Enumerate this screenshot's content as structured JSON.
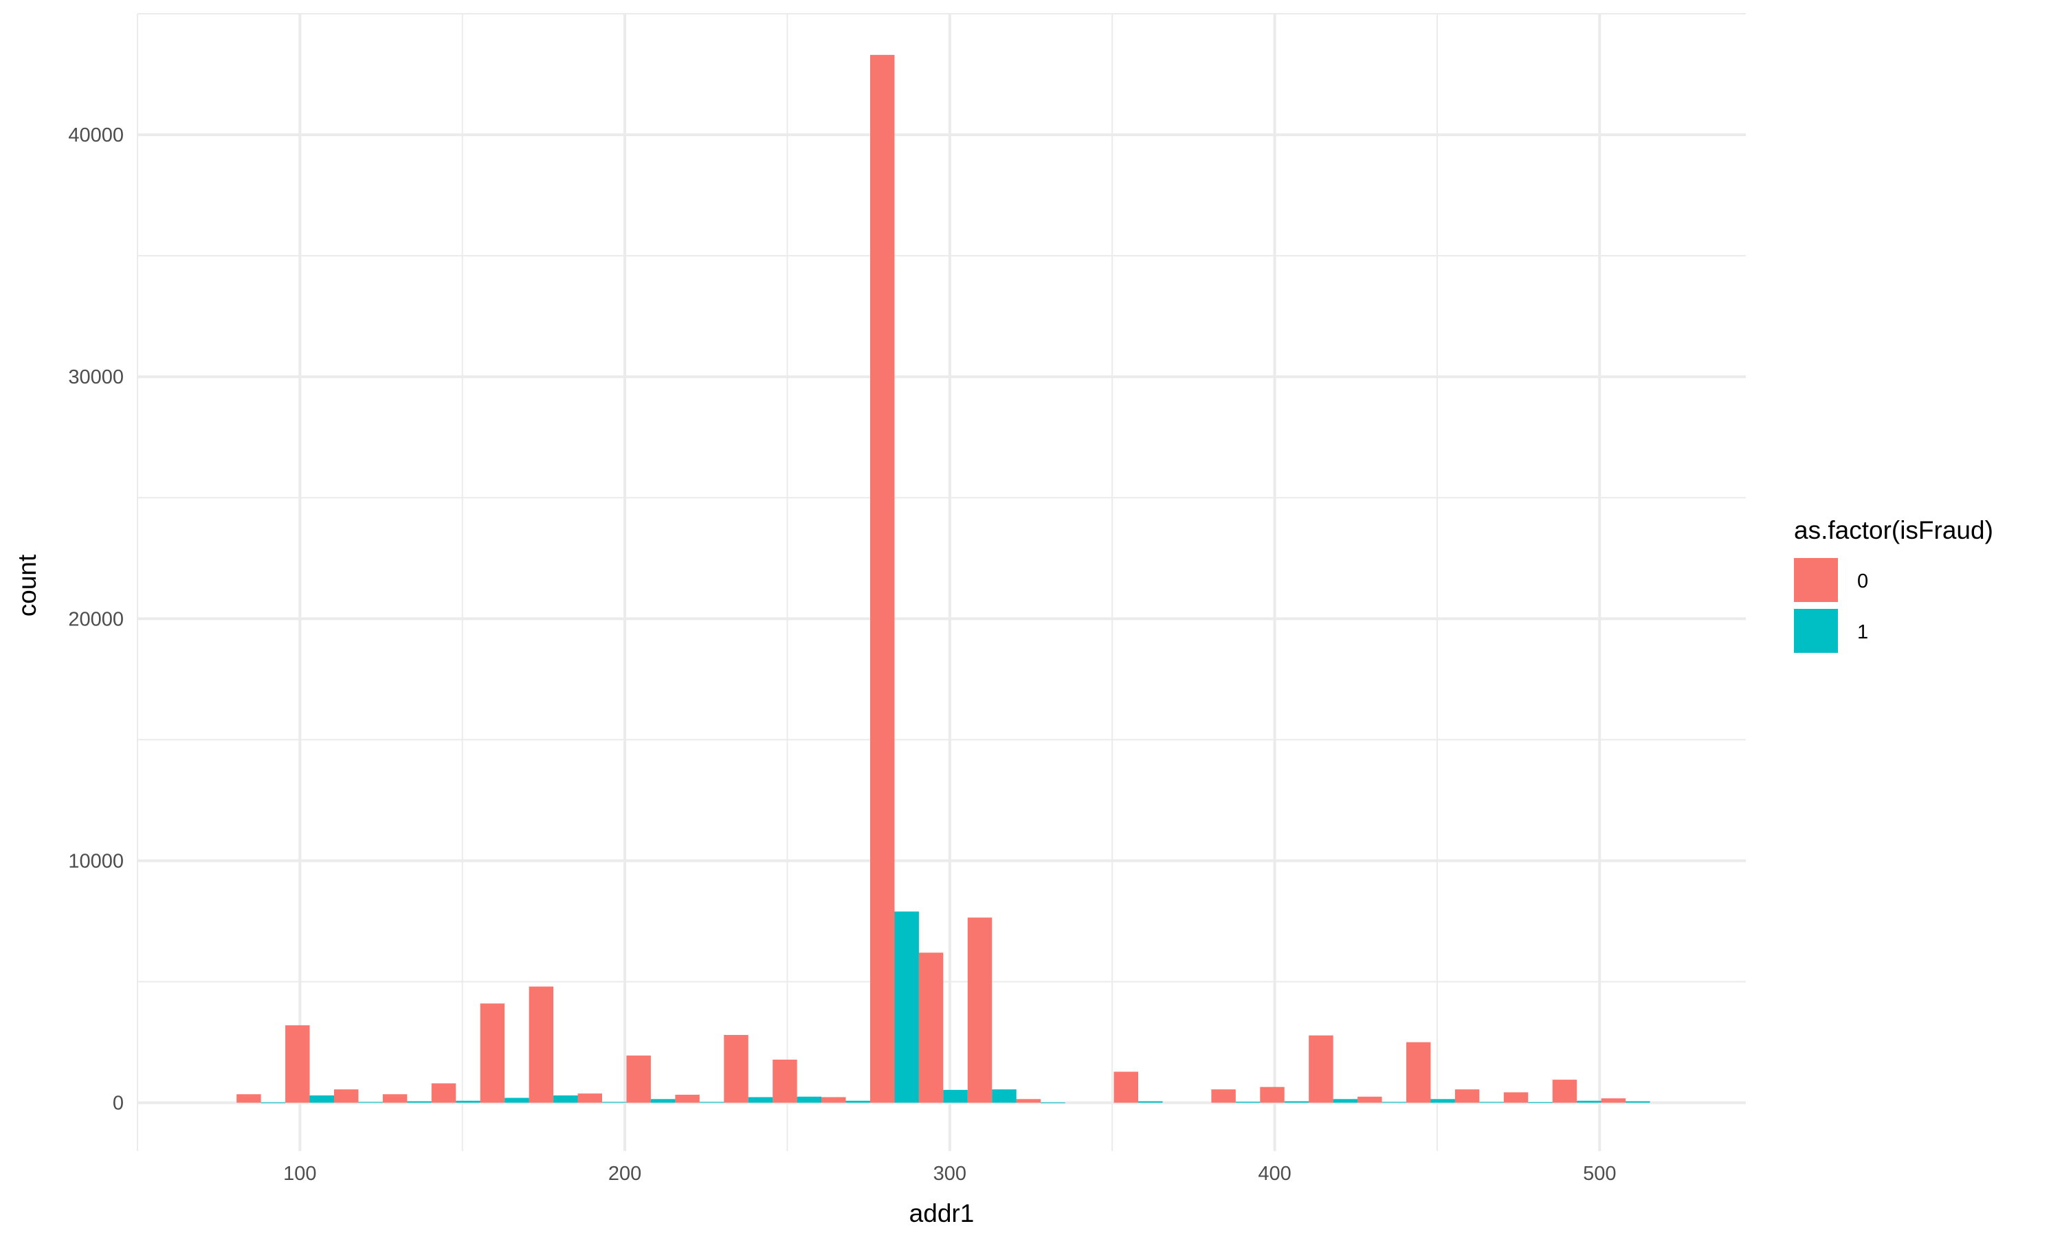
{
  "chart_data": {
    "type": "bar",
    "title": "",
    "xlabel": "addr1",
    "ylabel": "count",
    "xlim": [
      50,
      545
    ],
    "ylim": [
      -2000,
      45000
    ],
    "x_ticks": [
      100,
      200,
      300,
      400,
      500
    ],
    "y_ticks": [
      0,
      10000,
      20000,
      30000,
      40000
    ],
    "grid": true,
    "legend": {
      "title": "as.factor(isFraud)",
      "position": "right"
    },
    "bin_width": 15,
    "series": [
      {
        "name": "0",
        "color": "#F8766D",
        "points": [
          {
            "x": 88,
            "y": 350
          },
          {
            "x": 103,
            "y": 3200
          },
          {
            "x": 118,
            "y": 550
          },
          {
            "x": 133,
            "y": 350
          },
          {
            "x": 148,
            "y": 800
          },
          {
            "x": 163,
            "y": 4100
          },
          {
            "x": 178,
            "y": 4800
          },
          {
            "x": 193,
            "y": 380
          },
          {
            "x": 208,
            "y": 1950
          },
          {
            "x": 223,
            "y": 330
          },
          {
            "x": 238,
            "y": 2800
          },
          {
            "x": 253,
            "y": 1780
          },
          {
            "x": 268,
            "y": 230
          },
          {
            "x": 283,
            "y": 43300
          },
          {
            "x": 298,
            "y": 6200
          },
          {
            "x": 313,
            "y": 7650
          },
          {
            "x": 328,
            "y": 150
          },
          {
            "x": 358,
            "y": 1280
          },
          {
            "x": 388,
            "y": 550
          },
          {
            "x": 403,
            "y": 650
          },
          {
            "x": 418,
            "y": 2780
          },
          {
            "x": 433,
            "y": 250
          },
          {
            "x": 448,
            "y": 2500
          },
          {
            "x": 463,
            "y": 550
          },
          {
            "x": 478,
            "y": 430
          },
          {
            "x": 493,
            "y": 950
          },
          {
            "x": 508,
            "y": 180
          }
        ]
      },
      {
        "name": "1",
        "color": "#00BFC4",
        "points": [
          {
            "x": 88,
            "y": 10
          },
          {
            "x": 103,
            "y": 300
          },
          {
            "x": 118,
            "y": 30
          },
          {
            "x": 133,
            "y": 60
          },
          {
            "x": 148,
            "y": 80
          },
          {
            "x": 163,
            "y": 200
          },
          {
            "x": 178,
            "y": 300
          },
          {
            "x": 193,
            "y": 30
          },
          {
            "x": 208,
            "y": 150
          },
          {
            "x": 223,
            "y": 30
          },
          {
            "x": 238,
            "y": 230
          },
          {
            "x": 253,
            "y": 250
          },
          {
            "x": 268,
            "y": 80
          },
          {
            "x": 283,
            "y": 7900
          },
          {
            "x": 298,
            "y": 530
          },
          {
            "x": 313,
            "y": 550
          },
          {
            "x": 328,
            "y": 10
          },
          {
            "x": 358,
            "y": 60
          },
          {
            "x": 388,
            "y": 40
          },
          {
            "x": 403,
            "y": 60
          },
          {
            "x": 418,
            "y": 150
          },
          {
            "x": 433,
            "y": 30
          },
          {
            "x": 448,
            "y": 150
          },
          {
            "x": 463,
            "y": 30
          },
          {
            "x": 478,
            "y": 20
          },
          {
            "x": 493,
            "y": 80
          },
          {
            "x": 508,
            "y": 60
          }
        ]
      }
    ]
  }
}
